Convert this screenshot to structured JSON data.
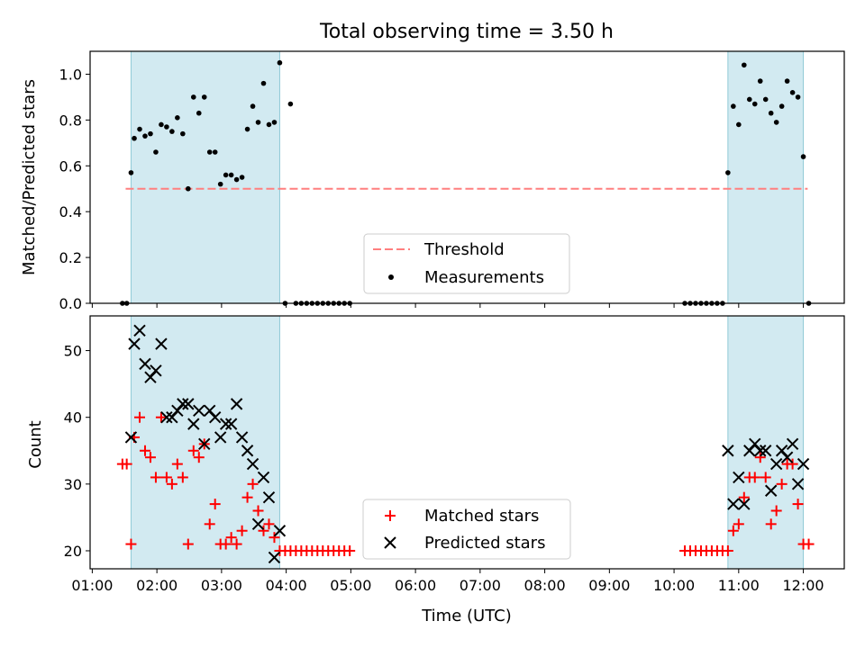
{
  "title": "Total observing time = 3.50 h",
  "colors": {
    "shade": "#add8e6",
    "threshold": "#ff7f7f",
    "measurement": "#000000",
    "matched": "#ff0000",
    "predicted": "#000000"
  },
  "chart_data": [
    {
      "type": "scatter",
      "ylabel": "Matched/Predicted stars",
      "ylim": [
        0,
        1.1
      ],
      "yticks": [
        0.0,
        0.2,
        0.4,
        0.6,
        0.8,
        1.0
      ],
      "ytick_labels": [
        "0.0",
        "0.2",
        "0.4",
        "0.6",
        "0.8",
        "1.0"
      ],
      "xlim": [
        "00:58",
        "12:38"
      ],
      "x_format": "HH:MM",
      "shaded_intervals": [
        [
          "01:36",
          "03:54"
        ],
        [
          "10:50",
          "12:00"
        ]
      ],
      "legend": {
        "position": "lower center",
        "entries": [
          "Threshold",
          "Measurements"
        ]
      },
      "series": [
        {
          "name": "Threshold",
          "style": "dashed-line",
          "x": [
            "01:31",
            "12:04"
          ],
          "y": [
            0.5,
            0.5
          ]
        },
        {
          "name": "Measurements",
          "style": "dot",
          "x": [
            "01:28",
            "01:32",
            "01:36",
            "01:39",
            "01:44",
            "01:49",
            "01:54",
            "01:59",
            "02:04",
            "02:09",
            "02:14",
            "02:19",
            "02:24",
            "02:29",
            "02:34",
            "02:39",
            "02:44",
            "02:49",
            "02:54",
            "02:59",
            "03:04",
            "03:09",
            "03:14",
            "03:19",
            "03:24",
            "03:29",
            "03:34",
            "03:39",
            "03:44",
            "03:49",
            "03:54",
            "03:59",
            "04:04",
            "04:09",
            "04:14",
            "04:19",
            "04:24",
            "04:29",
            "04:34",
            "04:39",
            "04:44",
            "04:49",
            "04:54",
            "04:59",
            "10:10",
            "10:15",
            "10:20",
            "10:25",
            "10:30",
            "10:35",
            "10:40",
            "10:45",
            "10:50",
            "10:55",
            "11:00",
            "11:05",
            "11:10",
            "11:15",
            "11:20",
            "11:25",
            "11:30",
            "11:35",
            "11:40",
            "11:45",
            "11:50",
            "11:55",
            "12:00",
            "12:05"
          ],
          "y": [
            0,
            0,
            0.57,
            0.72,
            0.76,
            0.73,
            0.74,
            0.66,
            0.78,
            0.77,
            0.75,
            0.81,
            0.74,
            0.5,
            0.9,
            0.83,
            0.9,
            0.66,
            0.66,
            0.52,
            0.56,
            0.56,
            0.54,
            0.55,
            0.76,
            0.86,
            0.79,
            0.96,
            0.78,
            0.79,
            1.05,
            0,
            0.87,
            0,
            0,
            0,
            0,
            0,
            0,
            0,
            0,
            0,
            0,
            0,
            0,
            0,
            0,
            0,
            0,
            0,
            0,
            0,
            0.57,
            0.86,
            0.78,
            1.04,
            0.89,
            0.87,
            0.97,
            0.89,
            0.83,
            0.79,
            0.86,
            0.97,
            0.92,
            0.9,
            0.64,
            0
          ]
        }
      ]
    },
    {
      "type": "scatter",
      "xlabel": "Time (UTC)",
      "ylabel": "Count",
      "ylim": [
        17.3,
        55.2
      ],
      "yticks": [
        20,
        30,
        40,
        50
      ],
      "ytick_labels": [
        "20",
        "30",
        "40",
        "50"
      ],
      "xlim": [
        "00:58",
        "12:38"
      ],
      "xticks": [
        "01:00",
        "02:00",
        "03:00",
        "04:00",
        "05:00",
        "06:00",
        "07:00",
        "08:00",
        "09:00",
        "10:00",
        "11:00",
        "12:00"
      ],
      "shaded_intervals": [
        [
          "01:36",
          "03:54"
        ],
        [
          "10:50",
          "12:00"
        ]
      ],
      "legend": {
        "position": "lower center",
        "entries": [
          "Matched stars",
          "Predicted stars"
        ]
      },
      "series": [
        {
          "name": "Matched stars",
          "marker": "+",
          "x": [
            "01:28",
            "01:32",
            "01:36",
            "01:39",
            "01:44",
            "01:49",
            "01:54",
            "01:59",
            "02:04",
            "02:09",
            "02:14",
            "02:19",
            "02:24",
            "02:29",
            "02:34",
            "02:39",
            "02:44",
            "02:49",
            "02:54",
            "02:59",
            "03:04",
            "03:09",
            "03:14",
            "03:19",
            "03:24",
            "03:29",
            "03:34",
            "03:39",
            "03:44",
            "03:49",
            "03:54",
            "03:59",
            "04:04",
            "04:09",
            "04:14",
            "04:19",
            "04:24",
            "04:29",
            "04:34",
            "04:39",
            "04:44",
            "04:49",
            "04:54",
            "04:59",
            "10:10",
            "10:15",
            "10:20",
            "10:25",
            "10:30",
            "10:35",
            "10:40",
            "10:45",
            "10:50",
            "10:55",
            "11:00",
            "11:05",
            "11:10",
            "11:15",
            "11:20",
            "11:25",
            "11:30",
            "11:35",
            "11:40",
            "11:45",
            "11:50",
            "11:55",
            "12:00",
            "12:05"
          ],
          "y": [
            33,
            33,
            21,
            37,
            40,
            35,
            34,
            31,
            40,
            31,
            30,
            33,
            31,
            21,
            35,
            34,
            36,
            24,
            27,
            21,
            21,
            22,
            21,
            23,
            28,
            30,
            26,
            23,
            24,
            22,
            20,
            20,
            20,
            20,
            20,
            20,
            20,
            20,
            20,
            20,
            20,
            20,
            20,
            20,
            20,
            20,
            20,
            20,
            20,
            20,
            20,
            20,
            20,
            23,
            24,
            28,
            31,
            31,
            34,
            31,
            24,
            26,
            30,
            33,
            33,
            27,
            21,
            21
          ]
        },
        {
          "name": "Predicted stars",
          "marker": "x",
          "x": [
            "01:36",
            "01:39",
            "01:44",
            "01:49",
            "01:54",
            "01:59",
            "02:04",
            "02:09",
            "02:14",
            "02:19",
            "02:24",
            "02:29",
            "02:34",
            "02:39",
            "02:44",
            "02:49",
            "02:54",
            "02:59",
            "03:04",
            "03:09",
            "03:14",
            "03:19",
            "03:24",
            "03:29",
            "03:34",
            "03:39",
            "03:44",
            "03:49",
            "03:54",
            "03:59",
            "10:50",
            "10:55",
            "11:00",
            "11:05",
            "11:10",
            "11:15",
            "11:20",
            "11:25",
            "11:30",
            "11:35",
            "11:40",
            "11:45",
            "11:50",
            "11:55",
            "12:00"
          ],
          "y": [
            37,
            51,
            53,
            48,
            46,
            47,
            51,
            40,
            40,
            41,
            42,
            42,
            39,
            41,
            36,
            41,
            40,
            37,
            39,
            39,
            42,
            37,
            35,
            33,
            24,
            31,
            28,
            19,
            23,
            null,
            35,
            27,
            31,
            27,
            35,
            36,
            35,
            35,
            29,
            33,
            35,
            34,
            36,
            30,
            33
          ]
        }
      ]
    }
  ]
}
